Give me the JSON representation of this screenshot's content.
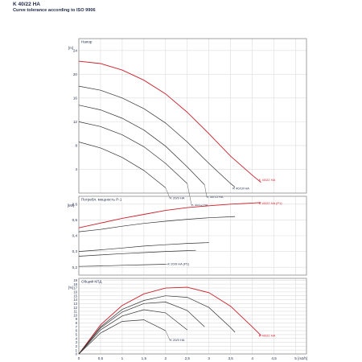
{
  "header": {
    "title": "K 40/22 HA",
    "subtitle": "Curve tolerance according to ISO 9906"
  },
  "chart_data": [
    {
      "type": "line",
      "panel": "head",
      "label": "Напор",
      "unit": "[m]",
      "ylim": [
        0,
        26
      ],
      "yticks": [
        4,
        8,
        12,
        16,
        20,
        24
      ],
      "grid": true,
      "series": [
        {
          "name": "K 40/22 HA",
          "highlight": true,
          "label_pos": [
            4.15,
            2.0
          ],
          "x": [
            0,
            0.5,
            1.0,
            1.5,
            2.0,
            2.5,
            3.0,
            3.5,
            4.0,
            4.2
          ],
          "y": [
            22.2,
            21.8,
            20.7,
            19.0,
            16.7,
            13.6,
            10.0,
            6.2,
            3.0,
            1.8
          ]
        },
        {
          "name": "K 40/19 HA",
          "label_pos": [
            3.55,
            0.6
          ],
          "x": [
            0,
            0.5,
            1.0,
            1.5,
            2.0,
            2.5,
            3.0,
            3.5,
            3.6
          ],
          "y": [
            18.0,
            17.3,
            16.0,
            14.2,
            11.8,
            8.6,
            5.0,
            1.6,
            1.0
          ]
        },
        {
          "name": "K 30/15 HA",
          "label_pos": [
            2.95,
            -0.8
          ],
          "x": [
            0,
            0.5,
            1.0,
            1.5,
            2.0,
            2.5,
            2.9
          ],
          "y": [
            14.8,
            14.0,
            12.6,
            10.6,
            7.9,
            4.4,
            1.4
          ]
        },
        {
          "name": "K 30/12 HA",
          "label_pos": [
            2.6,
            -2.2
          ],
          "x": [
            0,
            0.5,
            1.0,
            1.5,
            2.0,
            2.5
          ],
          "y": [
            12.0,
            11.2,
            9.8,
            7.8,
            5.0,
            1.6
          ]
        },
        {
          "name": "K 20/9 HA",
          "label_pos": [
            2.1,
            -1.0
          ],
          "x": [
            0,
            0.5,
            1.0,
            1.5,
            2.0
          ],
          "y": [
            8.6,
            7.6,
            6.0,
            3.8,
            0.9
          ]
        }
      ]
    },
    {
      "type": "line",
      "panel": "power",
      "label": "Потребл. мощность P-1",
      "unit": "[kW]",
      "ylim": [
        0.15,
        0.65
      ],
      "yticks": [
        0.2,
        0.3,
        0.4,
        0.5,
        0.6
      ],
      "ytick_labels": [
        "0,2",
        "0,3",
        "0,4",
        "0,5",
        "0,6"
      ],
      "grid": true,
      "series": [
        {
          "name": "K 40/22 HA (P1)",
          "highlight": true,
          "label_pos": [
            4.15,
            0.6
          ],
          "x": [
            0,
            0.5,
            1.0,
            1.5,
            2.0,
            2.5,
            3.0,
            3.5,
            4.0,
            4.2
          ],
          "y": [
            0.45,
            0.48,
            0.51,
            0.535,
            0.56,
            0.578,
            0.59,
            0.6,
            0.607,
            0.61
          ]
        },
        {
          "name": "",
          "x": [
            0,
            0.5,
            1.0,
            1.5,
            2.0,
            2.5,
            3.0,
            3.5,
            3.6
          ],
          "y": [
            0.425,
            0.44,
            0.46,
            0.478,
            0.492,
            0.504,
            0.514,
            0.52,
            0.522
          ]
        },
        {
          "name": "",
          "x": [
            0,
            0.5,
            1.0,
            1.5,
            2.0,
            2.5,
            3.0
          ],
          "y": [
            0.3,
            0.31,
            0.322,
            0.334,
            0.343,
            0.351,
            0.356
          ]
        },
        {
          "name": "",
          "x": [
            0,
            0.5,
            1.0,
            1.5,
            2.0,
            2.5,
            2.7
          ],
          "y": [
            0.27,
            0.278,
            0.286,
            0.293,
            0.3,
            0.305,
            0.307
          ]
        },
        {
          "name": "K 20/9 HA (P1)",
          "label_pos": [
            2.05,
            0.215
          ],
          "x": [
            0,
            0.5,
            1.0,
            1.5,
            2.0
          ],
          "y": [
            0.205,
            0.208,
            0.212,
            0.216,
            0.219
          ]
        }
      ]
    },
    {
      "type": "line",
      "panel": "efficiency",
      "label": "Общий КПД",
      "unit": "[%]",
      "ylim": [
        0,
        19.5
      ],
      "yticks": [
        0,
        1,
        2,
        3,
        4,
        5,
        6,
        7,
        8,
        9,
        10,
        11,
        12,
        13,
        14,
        15,
        16,
        17,
        18,
        19
      ],
      "xlabel": "[m3/h]",
      "xlim": [
        0,
        5.25
      ],
      "xticks": [
        0,
        0.5,
        1,
        1.5,
        2,
        2.5,
        3,
        3.5,
        4,
        4.5,
        5
      ],
      "xtick_labels": [
        "0",
        "0,5",
        "1",
        "1,5",
        "2",
        "2,5",
        "3",
        "3,5",
        "4",
        "4,5",
        "5"
      ],
      "grid": true,
      "series": [
        {
          "name": "K 40/22 HA",
          "highlight": true,
          "label_pos": [
            4.15,
            4.5
          ],
          "x": [
            0,
            0.5,
            1.0,
            1.5,
            2.0,
            2.5,
            3.0,
            3.5,
            4.0,
            4.2
          ],
          "y": [
            0,
            7.5,
            12.5,
            15.5,
            17.0,
            17.2,
            15.8,
            12.3,
            7.0,
            4.8
          ]
        },
        {
          "name": "",
          "x": [
            0,
            0.5,
            1.0,
            1.5,
            2.0,
            2.5,
            3.0,
            3.5,
            3.6
          ],
          "y": [
            0,
            7.0,
            11.5,
            13.8,
            15.0,
            14.6,
            12.0,
            6.8,
            5.6
          ]
        },
        {
          "name": "",
          "x": [
            0,
            0.5,
            1.0,
            1.5,
            2.0,
            2.5,
            2.9
          ],
          "y": [
            0,
            6.7,
            10.8,
            13.0,
            13.4,
            11.2,
            7.0
          ]
        },
        {
          "name": "",
          "x": [
            0,
            0.5,
            1.0,
            1.5,
            2.0,
            2.5
          ],
          "y": [
            0,
            6.2,
            9.8,
            11.4,
            10.6,
            6.2
          ]
        },
        {
          "name": "K 20/9 HA",
          "label_pos": [
            2.1,
            3.3
          ],
          "x": [
            0,
            0.5,
            1.0,
            1.5,
            2.0
          ],
          "y": [
            0,
            5.4,
            8.4,
            8.8,
            6.0
          ]
        }
      ]
    }
  ],
  "colors": {
    "highlight": "#cc1f2a",
    "curve": "#333333",
    "grid": "#dcdcdc",
    "frame": "#8a8a8a",
    "text": "#1f2a4a"
  }
}
